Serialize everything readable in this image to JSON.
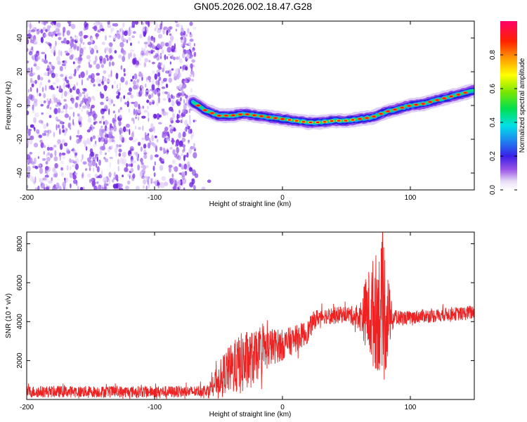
{
  "figure_title": "GN05.2026.002.18.47.G28",
  "colors": {
    "snr_line": "#ee2222",
    "frame": "#000000",
    "noise": "#8a2be2"
  },
  "chart_data": [
    {
      "type": "heatmap",
      "name": "spectrogram",
      "xlabel": "Height of straight line (km)",
      "ylabel": "Frequency (Hz)",
      "xlim": [
        -200,
        150
      ],
      "ylim": [
        -50,
        50
      ],
      "xticks": [
        -200,
        -100,
        0,
        100
      ],
      "yticks": [
        -40,
        -20,
        0,
        20,
        40
      ],
      "noise_region_x": [
        -200,
        -57
      ],
      "signal_start_x": -70,
      "ridge": {
        "x": [
          -70,
          -60,
          -50,
          -40,
          -30,
          -20,
          -10,
          0,
          10,
          20,
          30,
          40,
          50,
          60,
          70,
          80,
          90,
          100,
          110,
          120,
          130,
          140,
          150
        ],
        "frequency_hz": [
          2,
          -3,
          -6,
          -6,
          -5,
          -6,
          -7,
          -8,
          -9,
          -10,
          -10,
          -9,
          -9,
          -8,
          -7,
          -4,
          -2,
          0,
          1,
          3,
          5,
          7,
          9
        ]
      },
      "colorbar": {
        "label": "Normalized spectral amplitude",
        "range": [
          0,
          1
        ],
        "ticks": [
          "0.0",
          "0.2",
          "0.4",
          "0.6",
          "0.8"
        ],
        "colormap": "rainbow"
      }
    },
    {
      "type": "line",
      "name": "snr",
      "xlabel": "Height of straight line (km)",
      "ylabel": "SNR (10 * v/v)",
      "xlim": [
        -200,
        150
      ],
      "ylim": [
        0,
        8600
      ],
      "xticks": [
        -200,
        -100,
        0,
        100
      ],
      "yticks": [
        2000,
        4000,
        6000,
        8000
      ],
      "series": [
        {
          "name": "SNR",
          "x": [
            -200,
            -150,
            -100,
            -70,
            -58,
            -45,
            -30,
            -20,
            -10,
            0,
            10,
            20,
            25,
            30,
            40,
            50,
            55,
            60,
            65,
            70,
            75,
            80,
            85,
            90,
            100,
            110,
            120,
            130,
            140,
            150
          ],
          "y": [
            400,
            400,
            400,
            400,
            500,
            1400,
            1900,
            2200,
            2700,
            2800,
            3100,
            3500,
            4100,
            4300,
            4300,
            4400,
            4300,
            4200,
            4500,
            4400,
            4600,
            4400,
            4200,
            4200,
            4200,
            4300,
            4300,
            4400,
            4400,
            4500
          ],
          "noise_amplitude": [
            300,
            300,
            300,
            300,
            300,
            1100,
            1700,
            1300,
            1000,
            800,
            700,
            600,
            500,
            400,
            450,
            400,
            500,
            600,
            1800,
            2800,
            3200,
            3600,
            900,
            400,
            350,
            350,
            350,
            350,
            350,
            400
          ]
        }
      ]
    }
  ]
}
